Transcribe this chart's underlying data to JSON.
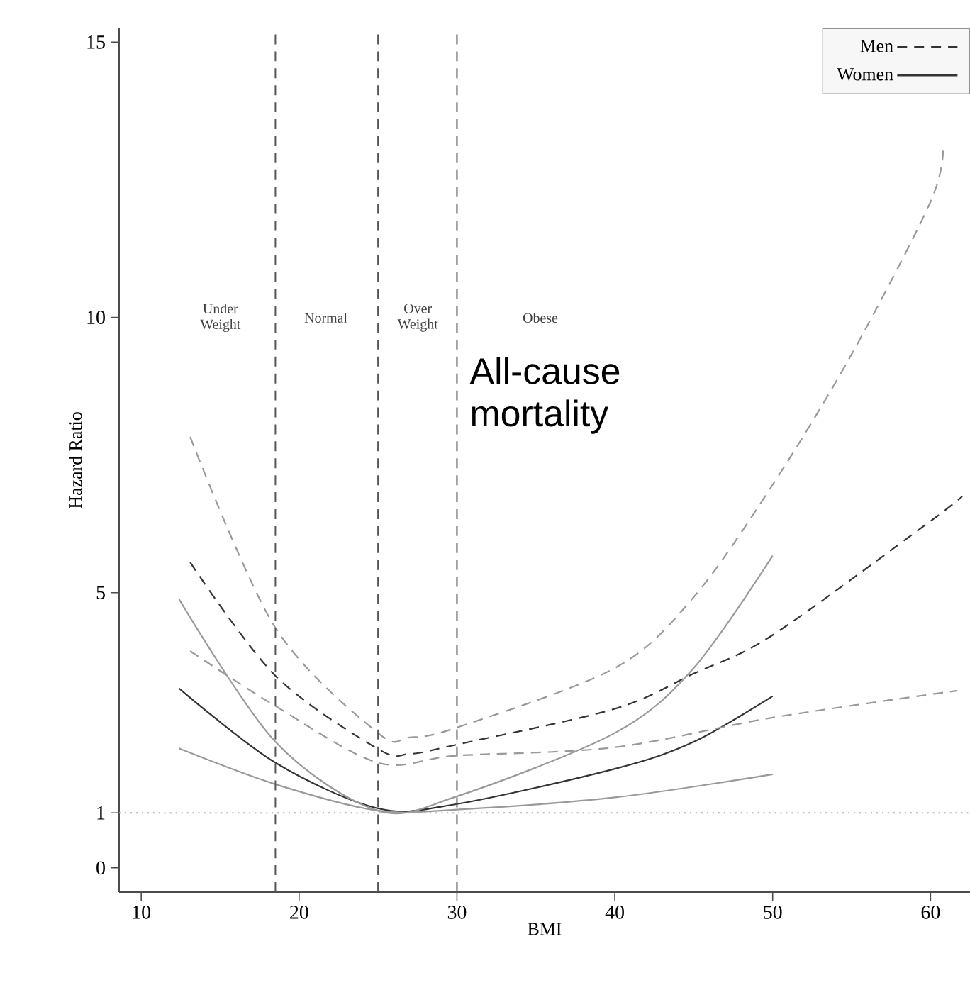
{
  "chart_data": {
    "type": "line",
    "xlabel": "BMI",
    "ylabel": "Hazard Ratio",
    "xlim": [
      8.6,
      62.5
    ],
    "ylim": [
      -0.44,
      15.25
    ],
    "xticks": [
      10,
      20,
      30,
      40,
      50,
      60
    ],
    "yticks": [
      0,
      1,
      5,
      10,
      15
    ],
    "grid": false,
    "legend": "top right",
    "marker": "none",
    "series": [
      {
        "name": "Men",
        "color": "#333333",
        "line_style": "dashed",
        "x": [
          13.1,
          18.5,
          25,
          27,
          30,
          40,
          45,
          50,
          60,
          62.0
        ],
        "values": [
          5.55,
          3.49,
          2.16,
          2.07,
          2.24,
          2.89,
          3.53,
          4.23,
          6.3,
          6.75
        ]
      },
      {
        "name": "Women",
        "color": "#333333",
        "line_style": "solid",
        "x": [
          12.4,
          18.5,
          25,
          30,
          40,
          45,
          50
        ],
        "values": [
          3.26,
          1.91,
          1.08,
          1.16,
          1.8,
          2.29,
          3.12
        ]
      },
      {
        "color": "#999999",
        "line_style": "dashed",
        "x": [
          13.1,
          18.5,
          25,
          27,
          30,
          40,
          45,
          50,
          55,
          60,
          60.8
        ],
        "values": [
          7.83,
          4.36,
          2.45,
          2.37,
          2.55,
          3.63,
          4.92,
          6.96,
          9.33,
          12.1,
          13.1
        ]
      },
      {
        "color": "#999999",
        "line_style": "dashed",
        "x": [
          13.1,
          18.5,
          25,
          30,
          40,
          50,
          61.7
        ],
        "values": [
          3.94,
          2.94,
          1.91,
          2.04,
          2.19,
          2.73,
          3.22
        ]
      },
      {
        "color": "#999999",
        "line_style": "solid",
        "x": [
          12.4,
          18.5,
          25,
          30,
          40,
          45,
          50
        ],
        "values": [
          4.88,
          2.29,
          1.04,
          1.3,
          2.45,
          3.63,
          5.67
        ]
      },
      {
        "color": "#999999",
        "line_style": "solid",
        "x": [
          12.4,
          18.5,
          25,
          30,
          40,
          50
        ],
        "values": [
          2.17,
          1.52,
          1.04,
          1.06,
          1.28,
          1.7
        ]
      }
    ],
    "ref_lines": [
      {
        "axis": "x",
        "value": 18.5,
        "color": "#555555",
        "line_style": "dashed"
      },
      {
        "axis": "x",
        "value": 25,
        "color": "#555555",
        "line_style": "dashed"
      },
      {
        "axis": "x",
        "value": 30,
        "color": "#555555",
        "line_style": "dashed"
      },
      {
        "axis": "y",
        "value": 1,
        "color": "#aaaaaa",
        "line_style": "dotted"
      }
    ],
    "annotations": [
      "Under Weight",
      "Normal",
      "Over Weight",
      "Obese",
      "All-cause mortality"
    ]
  }
}
